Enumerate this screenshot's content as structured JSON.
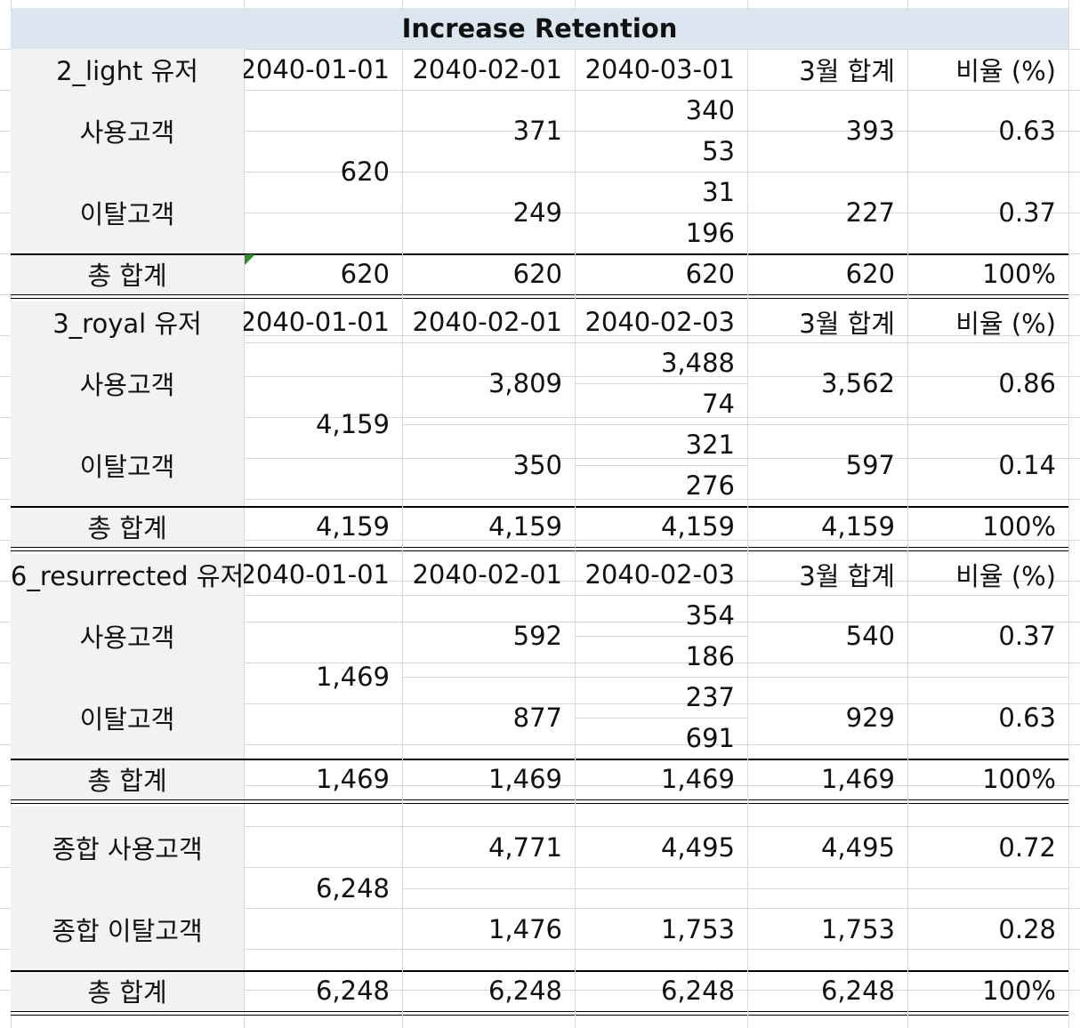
{
  "title": "Increase Retention",
  "sections": [
    {
      "label": "2_light 유저",
      "headers": [
        "2040-01-01",
        "2040-02-01",
        "2040-03-01",
        "3월 합계",
        "비율 (%)"
      ],
      "start": "620",
      "rows": [
        {
          "label": "사용고객",
          "feb": "371",
          "mar": [
            "340",
            "53"
          ],
          "sum": "393",
          "ratio": "0.63"
        },
        {
          "label": "이탈고객",
          "feb": "249",
          "mar": [
            "31",
            "196"
          ],
          "sum": "227",
          "ratio": "0.37"
        }
      ],
      "total": {
        "label": "총 합계",
        "values": [
          "620",
          "620",
          "620",
          "620",
          "100%"
        ]
      }
    },
    {
      "label": "3_royal 유저",
      "headers": [
        "2040-01-01",
        "2040-02-01",
        "2040-02-03",
        "3월 합계",
        "비율 (%)"
      ],
      "start": "4,159",
      "rows": [
        {
          "label": "사용고객",
          "feb": "3,809",
          "mar": [
            "3,488",
            "74"
          ],
          "sum": "3,562",
          "ratio": "0.86"
        },
        {
          "label": "이탈고객",
          "feb": "350",
          "mar": [
            "321",
            "276"
          ],
          "sum": "597",
          "ratio": "0.14"
        }
      ],
      "total": {
        "label": "총 합계",
        "values": [
          "4,159",
          "4,159",
          "4,159",
          "4,159",
          "100%"
        ]
      }
    },
    {
      "label": "6_resurrected 유저",
      "headers": [
        "2040-01-01",
        "2040-02-01",
        "2040-02-03",
        "3월 합계",
        "비율 (%)"
      ],
      "start": "1,469",
      "rows": [
        {
          "label": "사용고객",
          "feb": "592",
          "mar": [
            "354",
            "186"
          ],
          "sum": "540",
          "ratio": "0.37"
        },
        {
          "label": "이탈고객",
          "feb": "877",
          "mar": [
            "237",
            "691"
          ],
          "sum": "929",
          "ratio": "0.63"
        }
      ],
      "total": {
        "label": "총 합계",
        "values": [
          "1,469",
          "1,469",
          "1,469",
          "1,469",
          "100%"
        ]
      }
    }
  ],
  "summary": {
    "start": "6,248",
    "rows": [
      {
        "label": "종합 사용고객",
        "values": [
          "4,771",
          "4,495",
          "4,495",
          "0.72"
        ]
      },
      {
        "label": "종합 이탈고객",
        "values": [
          "1,476",
          "1,753",
          "1,753",
          "0.28"
        ]
      }
    ],
    "total": {
      "label": "총 합계",
      "values": [
        "6,248",
        "6,248",
        "6,248",
        "6,248",
        "100%"
      ]
    }
  },
  "colors": {
    "title_fill": "#dce6f1",
    "label_fill": "#f2f2f2",
    "gridline": "#d9d9d9",
    "border": "#000000",
    "comment_marker": "#2e8b2e"
  }
}
